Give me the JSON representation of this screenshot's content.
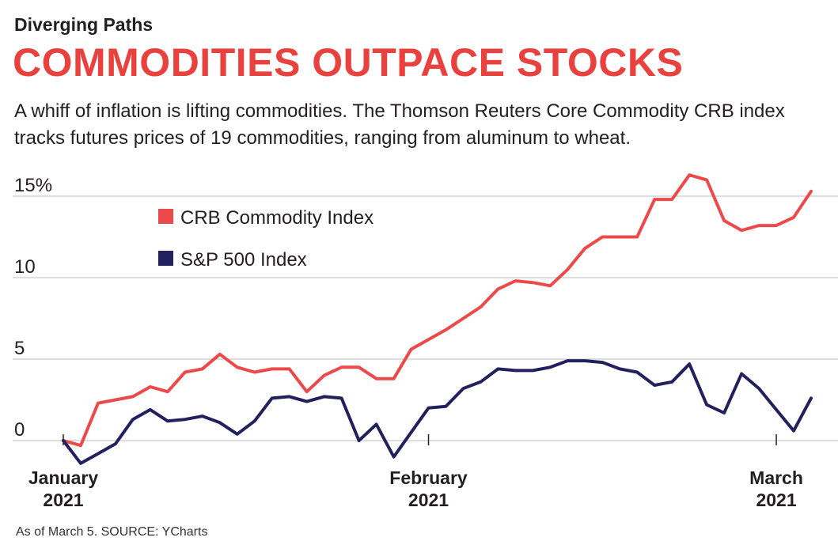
{
  "kicker": "Diverging Paths",
  "headline": "COMMODITIES OUTPACE STOCKS",
  "dek": "A whiff of inflation is lifting commodities. The Thomson Reuters Core Commodity CRB index tracks futures prices of 19 commodities, ranging from aluminum to wheat.",
  "source_note": "As of March 5.   SOURCE: YCharts",
  "colors": {
    "crb": "#ec4a4a",
    "sp500": "#22215e",
    "grid": "#d4d4d4",
    "headline": "#e8413e"
  },
  "chart_data": {
    "type": "line",
    "title": "COMMODITIES OUTPACE STOCKS",
    "xlabel": "",
    "ylabel": "",
    "ylim": [
      0,
      15
    ],
    "yticks": [
      0,
      5,
      10,
      15
    ],
    "ytick_labels": [
      "0",
      "5",
      "10",
      "15%"
    ],
    "legend": "top-left",
    "x_ticks": [
      {
        "index": 0,
        "month": "January",
        "year": "2021"
      },
      {
        "index": 21,
        "month": "February",
        "year": "2021"
      },
      {
        "index": 41,
        "month": "March",
        "year": "2021"
      }
    ],
    "series": [
      {
        "name": "CRB Commodity Index",
        "values": [
          0.0,
          -0.3,
          2.3,
          2.5,
          2.7,
          3.3,
          3.0,
          4.2,
          4.4,
          5.3,
          4.5,
          4.2,
          4.4,
          4.4,
          3.0,
          4.0,
          4.5,
          4.5,
          3.8,
          3.8,
          5.6,
          6.2,
          6.8,
          7.5,
          8.2,
          9.3,
          9.8,
          9.7,
          9.5,
          10.5,
          11.8,
          12.5,
          12.5,
          12.5,
          14.8,
          14.8,
          16.3,
          16.0,
          13.5,
          12.9,
          13.2,
          13.2,
          13.7,
          15.3
        ]
      },
      {
        "name": "S&P 500 Index",
        "values": [
          0.0,
          -1.4,
          -0.8,
          -0.2,
          1.3,
          1.9,
          1.2,
          1.3,
          1.5,
          1.1,
          0.4,
          1.2,
          2.6,
          2.7,
          2.4,
          2.7,
          2.6,
          0.0,
          1.0,
          -1.0,
          0.5,
          2.0,
          2.1,
          3.2,
          3.6,
          4.4,
          4.3,
          4.3,
          4.5,
          4.9,
          4.9,
          4.8,
          4.4,
          4.2,
          3.4,
          3.6,
          4.7,
          2.2,
          1.7,
          4.1,
          3.2,
          1.9,
          0.6,
          2.6
        ]
      }
    ]
  }
}
